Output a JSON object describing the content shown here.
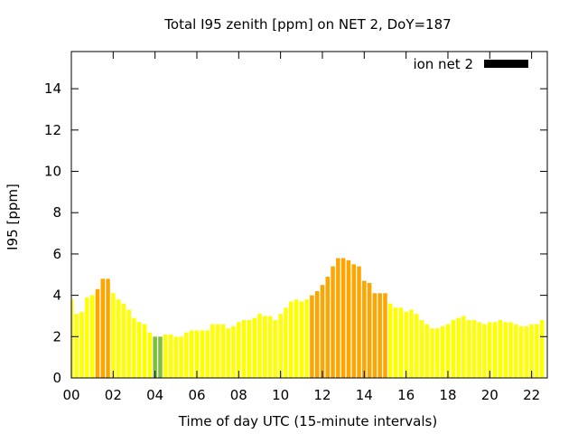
{
  "chart_data": {
    "type": "bar",
    "title": "Total I95 zenith [ppm] on NET 2, DoY=187",
    "xlabel": "Time of day UTC (15-minute intervals)",
    "ylabel": "I95 [ppm]",
    "legend": {
      "label": "ion net 2",
      "placement": "top-right"
    },
    "grid": false,
    "xlim": [
      0,
      22.75
    ],
    "ylim": [
      0,
      15.8
    ],
    "x_ticks": [
      "00",
      "02",
      "04",
      "06",
      "08",
      "10",
      "12",
      "14",
      "16",
      "18",
      "20",
      "22"
    ],
    "y_ticks": [
      "0",
      "2",
      "4",
      "6",
      "8",
      "10",
      "12",
      "14"
    ],
    "interval_hours": 0.25,
    "colors": {
      "low": "#7fbf3f",
      "normal": "#ffff00",
      "elevated": "#ffa500",
      "legend": "#000000",
      "axis": "#000000"
    },
    "values": [
      3.8,
      3.1,
      3.2,
      3.9,
      4.0,
      4.3,
      4.8,
      4.8,
      4.1,
      3.8,
      3.6,
      3.3,
      2.9,
      2.7,
      2.6,
      2.2,
      2.0,
      2.0,
      2.1,
      2.1,
      2.0,
      2.0,
      2.2,
      2.3,
      2.3,
      2.3,
      2.3,
      2.6,
      2.6,
      2.6,
      2.4,
      2.5,
      2.7,
      2.8,
      2.8,
      2.9,
      3.1,
      3.0,
      3.0,
      2.8,
      3.1,
      3.4,
      3.7,
      3.8,
      3.7,
      3.8,
      4.0,
      4.2,
      4.5,
      4.9,
      5.4,
      5.8,
      5.8,
      5.7,
      5.5,
      5.4,
      4.7,
      4.6,
      4.1,
      4.1,
      4.1,
      3.6,
      3.4,
      3.4,
      3.2,
      3.3,
      3.1,
      2.8,
      2.6,
      2.4,
      2.4,
      2.5,
      2.6,
      2.8,
      2.9,
      3.0,
      2.8,
      2.8,
      2.7,
      2.6,
      2.7,
      2.7,
      2.8,
      2.7,
      2.7,
      2.6,
      2.5,
      2.5,
      2.6,
      2.6,
      2.8
    ],
    "levels": [
      "n",
      "n",
      "n",
      "n",
      "n",
      "e",
      "e",
      "e",
      "n",
      "n",
      "n",
      "n",
      "n",
      "n",
      "n",
      "n",
      "l",
      "l",
      "n",
      "n",
      "n",
      "n",
      "n",
      "n",
      "n",
      "n",
      "n",
      "n",
      "n",
      "n",
      "n",
      "n",
      "n",
      "n",
      "n",
      "n",
      "n",
      "n",
      "n",
      "n",
      "n",
      "n",
      "n",
      "n",
      "n",
      "n",
      "e",
      "e",
      "e",
      "e",
      "e",
      "e",
      "e",
      "e",
      "e",
      "e",
      "e",
      "e",
      "e",
      "e",
      "e",
      "n",
      "n",
      "n",
      "n",
      "n",
      "n",
      "n",
      "n",
      "n",
      "n",
      "n",
      "n",
      "n",
      "n",
      "n",
      "n",
      "n",
      "n",
      "n",
      "n",
      "n",
      "n",
      "n",
      "n",
      "n",
      "n",
      "n",
      "n",
      "n",
      "n"
    ]
  }
}
